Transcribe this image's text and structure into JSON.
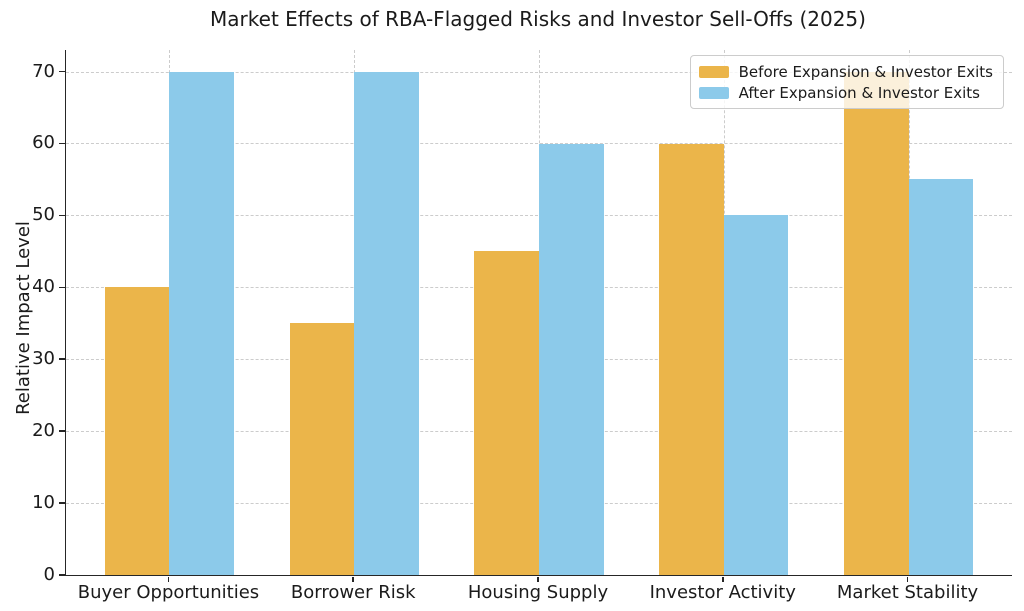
{
  "chart_data": {
    "type": "bar",
    "title": "Market Effects of RBA-Flagged Risks and Investor Sell-Offs (2025)",
    "xlabel": "",
    "ylabel": "Relative Impact Level",
    "categories": [
      "Buyer Opportunities",
      "Borrower Risk",
      "Housing Supply",
      "Investor Activity",
      "Market Stability"
    ],
    "series": [
      {
        "name": "Before Expansion & Investor Exits",
        "color": "#EBB54A",
        "values": [
          40,
          35,
          45,
          60,
          70
        ]
      },
      {
        "name": "After Expansion & Investor Exits",
        "color": "#8CCAEA",
        "values": [
          70,
          70,
          60,
          50,
          55
        ]
      }
    ],
    "yticks": [
      0,
      10,
      20,
      30,
      40,
      50,
      60,
      70
    ],
    "ylim": [
      0,
      73
    ],
    "xlim": [
      -0.56,
      4.56
    ],
    "bar_width": 0.35,
    "grid": true,
    "grid_style": "dashed",
    "legend_position": "upper right",
    "colors": {
      "grid": "#cccccc",
      "spine": "#262626",
      "text": "#1b1b1b",
      "background": "#ffffff",
      "legend_border": "#cccccc"
    }
  }
}
